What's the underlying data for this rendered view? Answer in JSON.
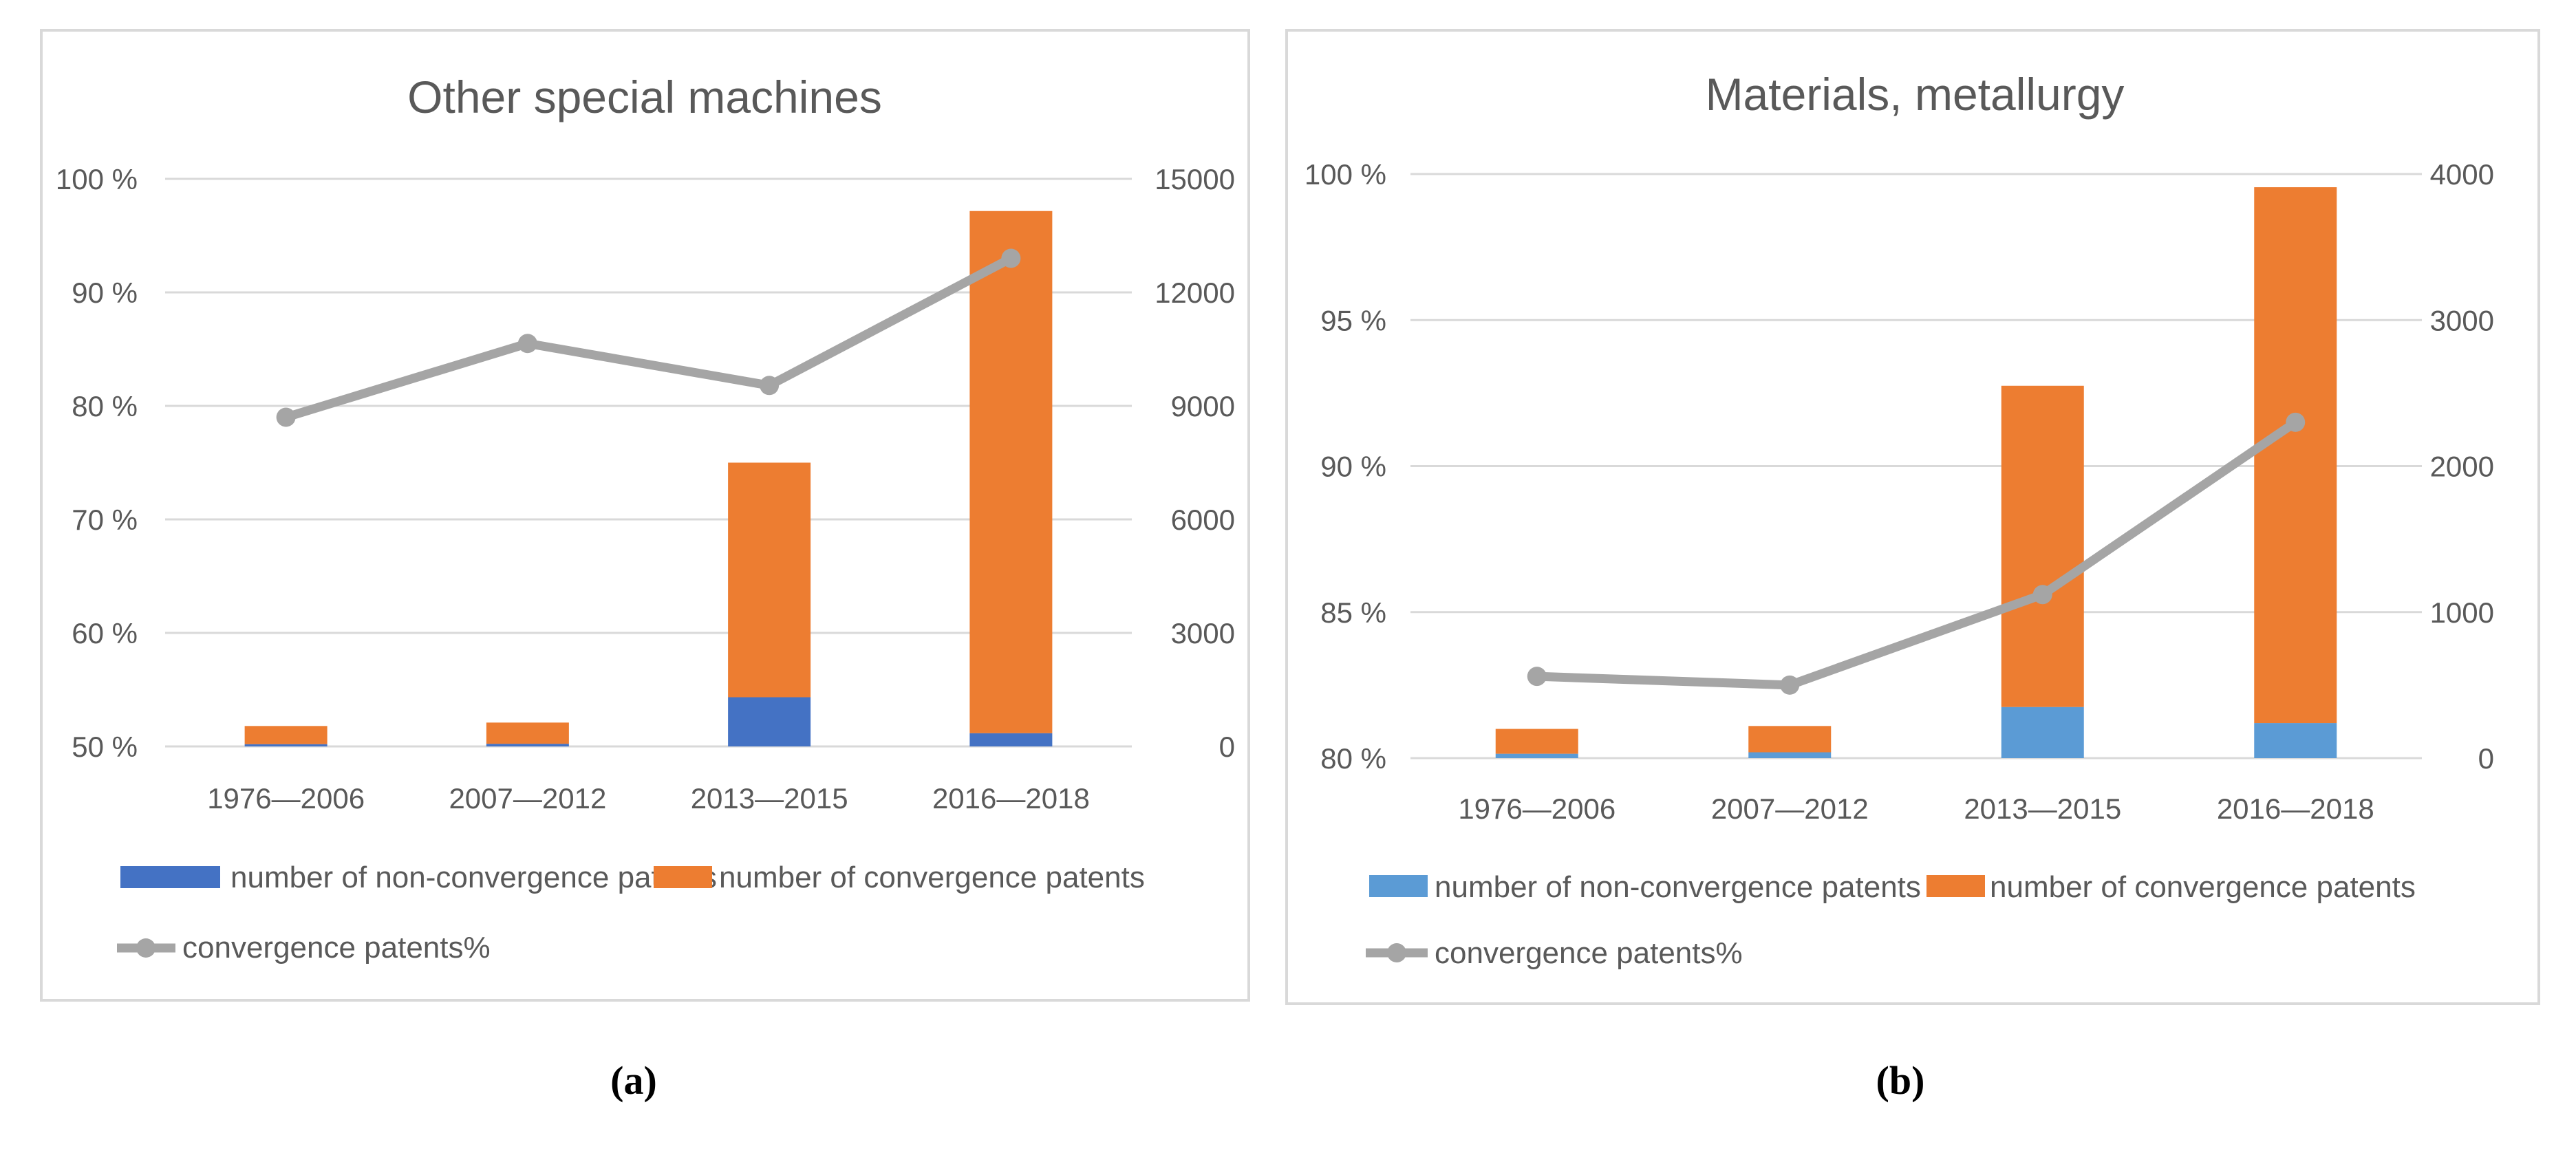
{
  "colors": {
    "non_convergence_a": "#4472c4",
    "non_convergence_b": "#5b9bd5",
    "convergence": "#ed7d31",
    "line": "#a5a5a5"
  },
  "chart_data": [
    {
      "type": "bar",
      "subtype": "stacked-bar-with-line-secondary-axis",
      "panel_label": "(a)",
      "title": "Other special machines",
      "categories": [
        "1976—2006",
        "2007—2012",
        "2013—2015",
        "2016—2018"
      ],
      "series": [
        {
          "name": "number of non-convergence patents",
          "axis": "right",
          "values": [
            60,
            70,
            1300,
            350
          ]
        },
        {
          "name": "number of convergence patents",
          "axis": "right",
          "values": [
            480,
            560,
            6200,
            13800
          ]
        },
        {
          "name": "convergence patents%",
          "axis": "left",
          "type": "line",
          "values": [
            79,
            85.5,
            81.8,
            93
          ]
        }
      ],
      "left_axis": {
        "ylim": [
          50,
          100
        ],
        "ticks": [
          "50 %",
          "60 %",
          "70 %",
          "80 %",
          "90 %",
          "100 %"
        ]
      },
      "right_axis": {
        "ylim": [
          0,
          15000
        ],
        "ticks": [
          "0",
          "3000",
          "6000",
          "9000",
          "12000",
          "15000"
        ]
      },
      "legend_position": "bottom"
    },
    {
      "type": "bar",
      "subtype": "stacked-bar-with-line-secondary-axis",
      "panel_label": "(b)",
      "title": "Materials, metallurgy",
      "categories": [
        "1976—2006",
        "2007—2012",
        "2013—2015",
        "2016—2018"
      ],
      "series": [
        {
          "name": "number of non-convergence patents",
          "axis": "right",
          "values": [
            30,
            40,
            350,
            240
          ]
        },
        {
          "name": "number of convergence patents",
          "axis": "right",
          "values": [
            170,
            180,
            2200,
            3670
          ]
        },
        {
          "name": "convergence patents%",
          "axis": "left",
          "type": "line",
          "values": [
            82.8,
            82.5,
            85.6,
            91.5
          ]
        }
      ],
      "left_axis": {
        "ylim": [
          80,
          100
        ],
        "ticks": [
          "80 %",
          "85 %",
          "90 %",
          "95 %",
          "100 %"
        ]
      },
      "right_axis": {
        "ylim": [
          0,
          4000
        ],
        "ticks": [
          "0",
          "1000",
          "2000",
          "3000",
          "4000"
        ]
      },
      "legend_position": "bottom"
    }
  ]
}
